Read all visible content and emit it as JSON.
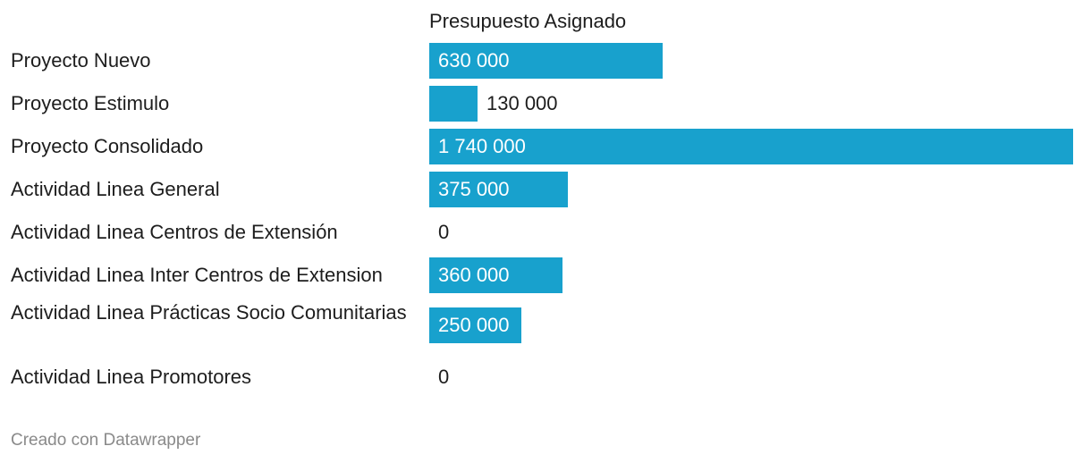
{
  "chart_data": {
    "type": "bar",
    "orientation": "horizontal",
    "column_header": "Presupuesto Asignado",
    "categories": [
      "Proyecto Nuevo",
      "Proyecto Estimulo",
      "Proyecto Consolidado",
      "Actividad Linea General",
      "Actividad Linea Centros de Extensión",
      "Actividad Linea Inter Centros de Extension",
      "Actividad Linea Prácticas Socio Comunitarias",
      "Actividad Linea Promotores"
    ],
    "values": [
      630000,
      130000,
      1740000,
      375000,
      0,
      360000,
      250000,
      0
    ],
    "value_labels": [
      "630 000",
      "130 000",
      "1 740 000",
      "375 000",
      "0",
      "360 000",
      "250 000",
      "0"
    ],
    "xlim": [
      0,
      1740000
    ],
    "bar_color": "#18a1cd",
    "grid": false,
    "legend": "none"
  },
  "footer": {
    "credit": "Creado con Datawrapper"
  }
}
